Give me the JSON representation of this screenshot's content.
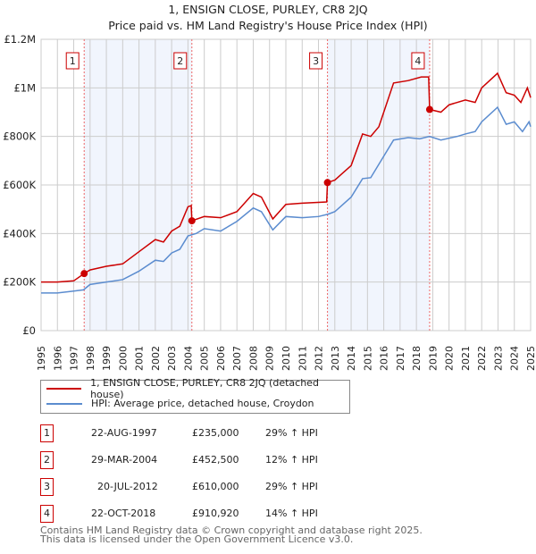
{
  "chart_data": {
    "type": "line",
    "title": "1, ENSIGN CLOSE, PURLEY, CR8 2JQ",
    "subtitle": "Price paid vs. HM Land Registry's House Price Index (HPI)",
    "xlim": [
      1995,
      2025
    ],
    "ylim": [
      0,
      1200000
    ],
    "y_ticks": [
      {
        "v": 0,
        "label": "£0"
      },
      {
        "v": 200000,
        "label": "£200K"
      },
      {
        "v": 400000,
        "label": "£400K"
      },
      {
        "v": 600000,
        "label": "£600K"
      },
      {
        "v": 800000,
        "label": "£800K"
      },
      {
        "v": 1000000,
        "label": "£1M"
      },
      {
        "v": 1200000,
        "label": "£1.2M"
      }
    ],
    "x_ticks": [
      "1995",
      "1996",
      "1997",
      "1998",
      "1999",
      "2000",
      "2001",
      "2002",
      "2003",
      "2004",
      "2005",
      "2006",
      "2007",
      "2008",
      "2009",
      "2010",
      "2011",
      "2012",
      "2013",
      "2014",
      "2015",
      "2016",
      "2017",
      "2018",
      "2019",
      "2020",
      "2021",
      "2022",
      "2023",
      "2024",
      "2025"
    ],
    "grid": true,
    "series": [
      {
        "name": "1, ENSIGN CLOSE, PURLEY, CR8 2JQ (detached house)",
        "color": "#cc0000",
        "points": [
          [
            1995,
            200000
          ],
          [
            1996,
            200000
          ],
          [
            1997,
            205000
          ],
          [
            1997.64,
            235000
          ],
          [
            1998,
            250000
          ],
          [
            1999,
            265000
          ],
          [
            2000,
            275000
          ],
          [
            2001,
            325000
          ],
          [
            2002,
            375000
          ],
          [
            2002.5,
            365000
          ],
          [
            2003,
            410000
          ],
          [
            2003.5,
            430000
          ],
          [
            2004,
            510000
          ],
          [
            2004.2,
            515000
          ],
          [
            2004.24,
            452500
          ],
          [
            2005,
            470000
          ],
          [
            2006,
            465000
          ],
          [
            2007,
            490000
          ],
          [
            2008,
            565000
          ],
          [
            2008.5,
            550000
          ],
          [
            2009.2,
            460000
          ],
          [
            2010,
            520000
          ],
          [
            2011,
            525000
          ],
          [
            2012.5,
            530000
          ],
          [
            2012.55,
            610000
          ],
          [
            2013,
            620000
          ],
          [
            2014,
            680000
          ],
          [
            2014.7,
            810000
          ],
          [
            2015.2,
            800000
          ],
          [
            2015.7,
            840000
          ],
          [
            2016.6,
            1020000
          ],
          [
            2017.5,
            1030000
          ],
          [
            2018.3,
            1045000
          ],
          [
            2018.75,
            1045000
          ],
          [
            2018.81,
            910920
          ],
          [
            2019.5,
            900000
          ],
          [
            2020,
            930000
          ],
          [
            2021,
            950000
          ],
          [
            2021.6,
            940000
          ],
          [
            2022,
            1000000
          ],
          [
            2022.97,
            1060000
          ],
          [
            2023.5,
            980000
          ],
          [
            2024,
            970000
          ],
          [
            2024.4,
            940000
          ],
          [
            2024.8,
            1000000
          ],
          [
            2025,
            960000
          ]
        ]
      },
      {
        "name": "HPI: Average price, detached house, Croydon",
        "color": "#5b8ccf",
        "points": [
          [
            1995,
            155000
          ],
          [
            1996,
            155000
          ],
          [
            1997,
            163000
          ],
          [
            1997.6,
            168000
          ],
          [
            1998,
            190000
          ],
          [
            1999,
            200000
          ],
          [
            2000,
            210000
          ],
          [
            2001,
            245000
          ],
          [
            2002,
            290000
          ],
          [
            2002.5,
            285000
          ],
          [
            2003,
            320000
          ],
          [
            2003.5,
            335000
          ],
          [
            2004,
            390000
          ],
          [
            2004.5,
            400000
          ],
          [
            2005,
            420000
          ],
          [
            2006,
            410000
          ],
          [
            2007,
            450000
          ],
          [
            2008,
            505000
          ],
          [
            2008.5,
            490000
          ],
          [
            2009.2,
            415000
          ],
          [
            2010,
            470000
          ],
          [
            2011,
            465000
          ],
          [
            2012,
            470000
          ],
          [
            2012.6,
            480000
          ],
          [
            2013,
            490000
          ],
          [
            2014,
            550000
          ],
          [
            2014.7,
            626000
          ],
          [
            2015.2,
            630000
          ],
          [
            2016.6,
            785000
          ],
          [
            2017.5,
            795000
          ],
          [
            2018.2,
            790000
          ],
          [
            2018.8,
            800000
          ],
          [
            2019.5,
            785000
          ],
          [
            2020.5,
            800000
          ],
          [
            2021,
            810000
          ],
          [
            2021.6,
            820000
          ],
          [
            2022,
            860000
          ],
          [
            2022.97,
            920000
          ],
          [
            2023.5,
            850000
          ],
          [
            2024,
            860000
          ],
          [
            2024.5,
            820000
          ],
          [
            2024.9,
            860000
          ],
          [
            2025,
            840000
          ]
        ]
      }
    ],
    "sales": [
      {
        "n": "1",
        "x": 1997.64,
        "price": 235000,
        "date": "22-AUG-1997",
        "price_label": "£235,000",
        "hpi": "29% ↑ HPI"
      },
      {
        "n": "2",
        "x": 2004.24,
        "price": 452500,
        "date": "29-MAR-2004",
        "price_label": "£452,500",
        "hpi": "12% ↑ HPI"
      },
      {
        "n": "3",
        "x": 2012.55,
        "price": 610000,
        "date": "20-JUL-2012",
        "price_label": "£610,000",
        "hpi": "29% ↑ HPI"
      },
      {
        "n": "4",
        "x": 2018.81,
        "price": 910920,
        "date": "22-OCT-2018",
        "price_label": "£910,920",
        "hpi": "14% ↑ HPI"
      }
    ],
    "legend_position": "below"
  },
  "footer": {
    "line1": "Contains HM Land Registry data © Crown copyright and database right 2025.",
    "line2": "This data is licensed under the Open Government Licence v3.0."
  }
}
